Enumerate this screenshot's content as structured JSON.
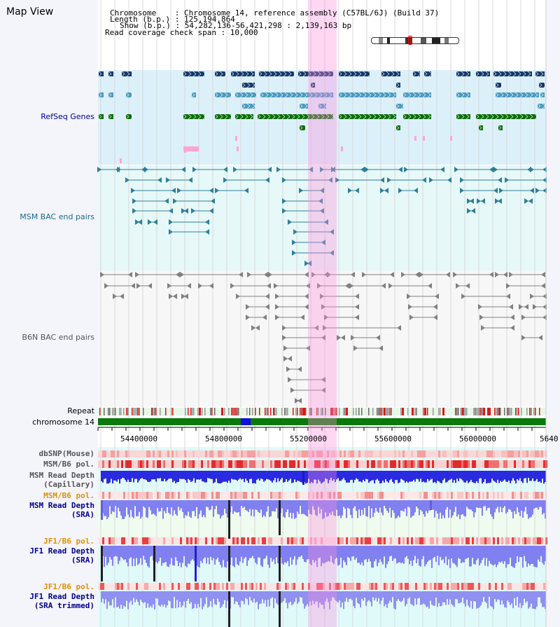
{
  "view": {
    "title": "Map View",
    "info": {
      "chromosome": "Chromosome    : Chromosome 14, reference assembly (C57BL/6J) (Build 37)",
      "length": "Length (b.p.) : 125,194,864",
      "show": "Show (b.p.) : 54,282,136-56,421,298 : 2,139,163 bp",
      "coverage": "Read coverage check span : 10,000"
    }
  },
  "axis": {
    "ticks": [
      "54400000",
      "54800000",
      "55200000",
      "55600000",
      "56000000",
      "5640"
    ]
  },
  "tracks": {
    "refseq": "RefSeq Genes",
    "msm_bac": "MSM BAC end pairs",
    "b6n_bac": "B6N BAC end pairs",
    "repeat": "Repeat",
    "chromosome": "chromosome 14",
    "dbsnp": "dbSNP(Mouse)",
    "msm_b6_pol": "MSM/B6 pol.",
    "msm_depth_cap_1": "MSM Read Depth",
    "msm_depth_cap_2": "(Capillary)",
    "msm_b6_pol2": "MSM/B6 pol.",
    "msm_depth_sra_1": "MSM Read Depth",
    "msm_depth_sra_2": "(SRA)",
    "jf1_b6_pol": "JF1/B6 pol.",
    "jf1_depth_sra_1": "JF1 Read Depth",
    "jf1_depth_sra_2": "(SRA)",
    "jf1_b6_pol2": "JF1/B6 pol.",
    "jf1_depth_trim_1": "JF1 Read Depth",
    "jf1_depth_trim_2": "(SRA trimmed)"
  },
  "colors": {
    "refseq_bg": "#dcf0fa",
    "msm_bg": "#e6f8f8",
    "b6n_bg": "#f7f7f7",
    "gene_navy": "#14386b",
    "gene_teal": "#4a9ac0",
    "gene_green": "#0a6e0a",
    "bac_teal": "#2f7f9a",
    "bac_gray": "#808080",
    "repeat_red": "#d41b1b",
    "chrom_green": "#0a7a0a",
    "chrom_blue": "#1010e0",
    "depth_blue": "#2020d0",
    "depth_light": "#8080f0",
    "highlight_pink": "#ff8cdc",
    "label_blue": "#00008b",
    "label_orange": "#e09000",
    "label_gray": "#555555"
  }
}
